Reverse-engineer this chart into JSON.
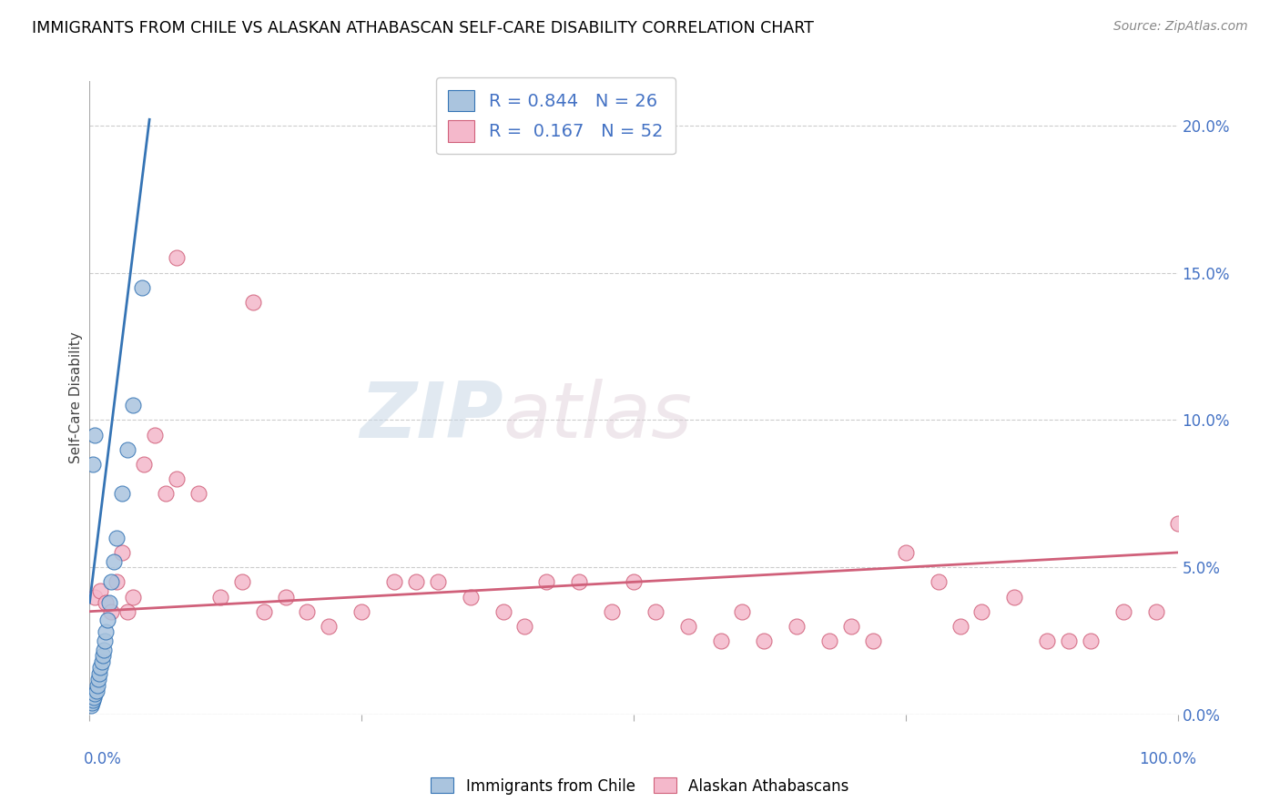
{
  "title": "IMMIGRANTS FROM CHILE VS ALASKAN ATHABASCAN SELF-CARE DISABILITY CORRELATION CHART",
  "source": "Source: ZipAtlas.com",
  "ylabel": "Self-Care Disability",
  "legend_blue_R": "R = 0.844",
  "legend_blue_N": "N = 26",
  "legend_pink_R": "R =  0.167",
  "legend_pink_N": "N = 52",
  "legend1_label": "Immigrants from Chile",
  "legend2_label": "Alaskan Athabascans",
  "blue_color": "#aac4de",
  "pink_color": "#f4b8cb",
  "blue_line_color": "#3574b5",
  "pink_line_color": "#d0607a",
  "blue_scatter_x": [
    0.1,
    0.2,
    0.3,
    0.4,
    0.5,
    0.6,
    0.7,
    0.8,
    0.9,
    1.0,
    1.1,
    1.2,
    1.3,
    1.4,
    1.5,
    1.6,
    1.8,
    2.0,
    2.2,
    2.5,
    3.0,
    3.5,
    4.0,
    4.8,
    0.3,
    0.5
  ],
  "blue_scatter_y": [
    0.3,
    0.4,
    0.5,
    0.6,
    0.7,
    0.8,
    1.0,
    1.2,
    1.4,
    1.6,
    1.8,
    2.0,
    2.2,
    2.5,
    2.8,
    3.2,
    3.8,
    4.5,
    5.2,
    6.0,
    7.5,
    9.0,
    10.5,
    14.5,
    8.5,
    9.5
  ],
  "pink_scatter_x": [
    0.5,
    1.0,
    1.5,
    2.0,
    2.5,
    3.0,
    3.5,
    4.0,
    5.0,
    6.0,
    7.0,
    8.0,
    10.0,
    12.0,
    14.0,
    16.0,
    18.0,
    20.0,
    22.0,
    25.0,
    28.0,
    30.0,
    32.0,
    35.0,
    38.0,
    40.0,
    42.0,
    45.0,
    48.0,
    50.0,
    52.0,
    55.0,
    58.0,
    60.0,
    62.0,
    65.0,
    68.0,
    70.0,
    72.0,
    75.0,
    78.0,
    80.0,
    82.0,
    85.0,
    88.0,
    90.0,
    92.0,
    95.0,
    98.0,
    100.0,
    8.0,
    15.0
  ],
  "pink_scatter_y": [
    4.0,
    4.2,
    3.8,
    3.5,
    4.5,
    5.5,
    3.5,
    4.0,
    8.5,
    9.5,
    7.5,
    8.0,
    7.5,
    4.0,
    4.5,
    3.5,
    4.0,
    3.5,
    3.0,
    3.5,
    4.5,
    4.5,
    4.5,
    4.0,
    3.5,
    3.0,
    4.5,
    4.5,
    3.5,
    4.5,
    3.5,
    3.0,
    2.5,
    3.5,
    2.5,
    3.0,
    2.5,
    3.0,
    2.5,
    5.5,
    4.5,
    3.0,
    3.5,
    4.0,
    2.5,
    2.5,
    2.5,
    3.5,
    3.5,
    6.5,
    15.5,
    14.0
  ],
  "blue_line_x": [
    0.0,
    5.5
  ],
  "blue_line_y": [
    3.8,
    20.2
  ],
  "pink_line_x": [
    0.0,
    100.0
  ],
  "pink_line_y": [
    3.5,
    5.5
  ],
  "xlim": [
    0,
    100
  ],
  "ylim": [
    0,
    21.5
  ],
  "yticks": [
    0,
    5,
    10,
    15,
    20
  ],
  "ytick_labels": [
    "0.0%",
    "5.0%",
    "10.0%",
    "15.0%",
    "20.0%"
  ],
  "watermark_zip": "ZIP",
  "watermark_atlas": "atlas"
}
